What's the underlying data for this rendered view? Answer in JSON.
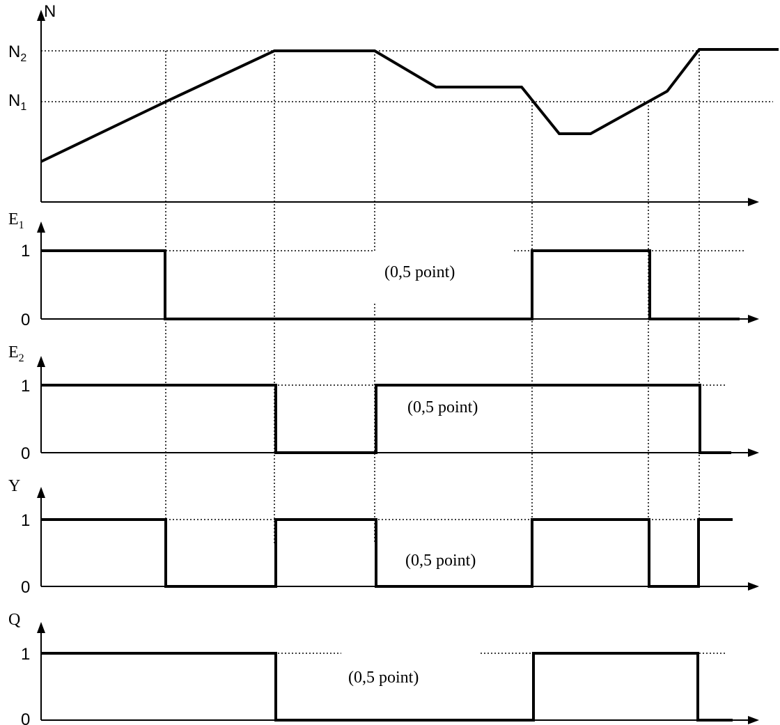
{
  "panel_N": {
    "axis_label": "N",
    "levels": [
      {
        "base": "N",
        "sub": "2"
      },
      {
        "base": "N",
        "sub": "1"
      }
    ]
  },
  "panels": [
    {
      "label_base": "E",
      "label_sub": "1",
      "level_high": "1",
      "level_low": "0",
      "note": "(0,5 point)"
    },
    {
      "label_base": "E",
      "label_sub": "2",
      "level_high": "1",
      "level_low": "0",
      "note": "(0,5 point)"
    },
    {
      "label_base": "Y",
      "label_sub": "",
      "level_high": "1",
      "level_low": "0",
      "note": "(0,5 point)"
    },
    {
      "label_base": "Q",
      "label_sub": "",
      "level_high": "1",
      "level_low": "0",
      "note": "(0,5 point)"
    }
  ],
  "colors": {
    "line": "#000000",
    "background": "#ffffff"
  }
}
